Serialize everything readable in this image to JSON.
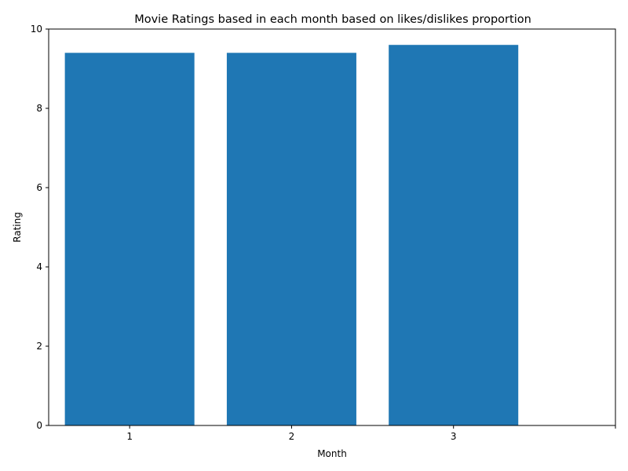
{
  "chart_data": {
    "type": "bar",
    "title": "Movie Ratings based in each month based on likes/dislikes proportion",
    "xlabel": "Month",
    "ylabel": "Rating",
    "categories": [
      "1",
      "2",
      "3"
    ],
    "values": [
      9.4,
      9.4,
      9.6
    ],
    "x_positions": [
      1,
      2,
      3
    ],
    "xlim": [
      0.5,
      4.0
    ],
    "ylim": [
      0,
      10
    ],
    "yticks": [
      0,
      2,
      4,
      6,
      8,
      10
    ],
    "xticks": [
      1,
      2,
      3,
      4
    ],
    "xtick_labels": [
      "1",
      "2",
      "3",
      ""
    ],
    "bar_width": 0.8,
    "bar_color": "#1f77b4",
    "grid": false
  }
}
